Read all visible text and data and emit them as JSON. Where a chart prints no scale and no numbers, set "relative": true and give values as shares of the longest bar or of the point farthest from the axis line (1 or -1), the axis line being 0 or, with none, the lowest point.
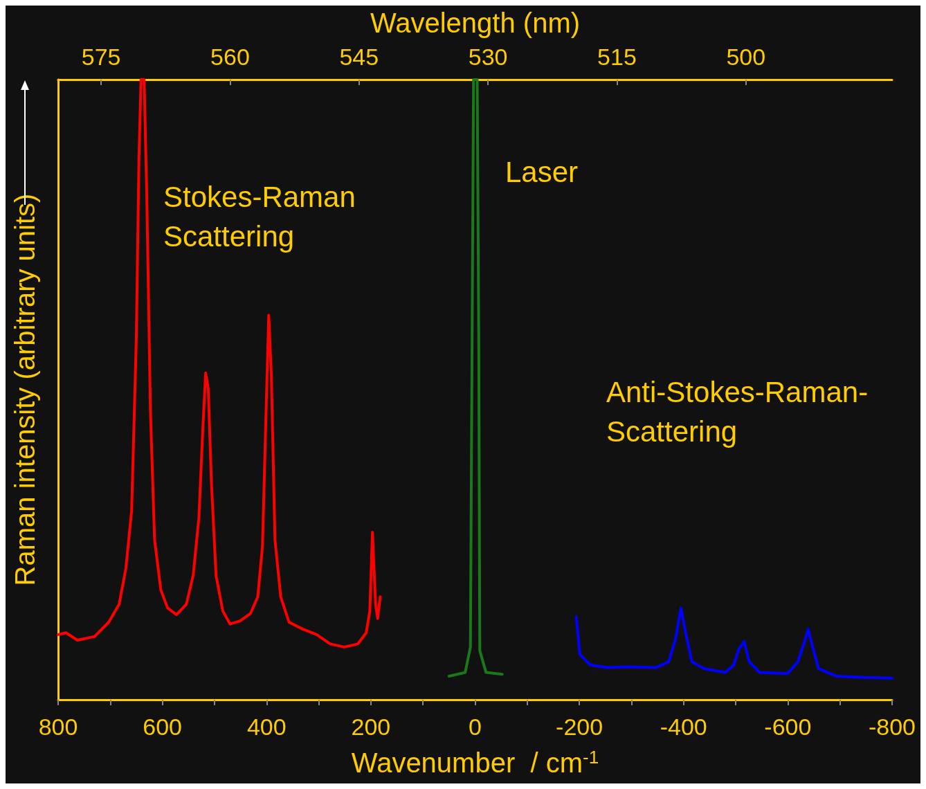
{
  "chart_data": {
    "type": "line",
    "relative": true,
    "xlabel": "Wavenumber  / cm$^{-1}$",
    "ylabel": "Raman intensity (arbitrary units)",
    "x2label": "Wavelength (nm)",
    "xlim": [
      800,
      -800
    ],
    "xticks": [
      800,
      {
        "value": 700,
        "label": null
      },
      600,
      {
        "value": 500,
        "label": null
      },
      400,
      {
        "value": 300,
        "label": null
      },
      200,
      {
        "value": 100,
        "label": null
      },
      0,
      {
        "value": -100,
        "label": null
      },
      -200,
      {
        "value": -300,
        "label": null
      },
      -400,
      {
        "value": -500,
        "label": null
      },
      -600,
      {
        "value": -700,
        "label": null
      },
      -800
    ],
    "x2lim": [
      580,
      483
    ],
    "x2ticks": [
      575,
      560,
      545,
      530,
      515,
      500
    ],
    "annotations": [
      "Stokes-Raman\nScattering",
      "Laser",
      "Anti-Stokes-Raman-\nScattering"
    ],
    "series": [
      {
        "color": "#ff0000",
        "x": [
          800,
          785,
          763,
          730,
          703,
          683,
          670,
          659,
          650,
          645,
          641,
          635,
          630,
          623,
          615,
          603,
          590,
          573,
          554,
          541,
          530,
          522,
          517,
          512,
          506,
          497,
          484,
          470,
          451,
          431,
          417,
          408,
          401,
          396,
          391,
          384,
          373,
          357,
          331,
          304,
          278,
          251,
          225,
          209,
          202,
          197,
          191,
          187,
          182
        ],
        "values": [
          0.105,
          0.108,
          0.096,
          0.102,
          0.125,
          0.154,
          0.212,
          0.305,
          0.583,
          0.872,
          1,
          1,
          0.815,
          0.467,
          0.258,
          0.177,
          0.148,
          0.137,
          0.154,
          0.2,
          0.293,
          0.444,
          0.527,
          0.502,
          0.351,
          0.2,
          0.143,
          0.122,
          0.127,
          0.139,
          0.166,
          0.247,
          0.467,
          0.62,
          0.525,
          0.258,
          0.166,
          0.125,
          0.114,
          0.105,
          0.09,
          0.085,
          0.09,
          0.108,
          0.143,
          0.27,
          0.154,
          0.131,
          0.166
        ]
      },
      {
        "color": "#1a7a1a",
        "x": [
          50,
          19,
          9,
          5,
          3,
          -4,
          -7,
          -9,
          -21,
          -52
        ],
        "values": [
          0.038,
          0.044,
          0.085,
          0.699,
          1,
          1,
          0.583,
          0.079,
          0.044,
          0.041
        ]
      },
      {
        "color": "#0000ff",
        "x": [
          -194,
          -201,
          -221,
          -254,
          -294,
          -347,
          -371,
          -384,
          -395,
          -404,
          -416,
          -440,
          -480,
          -496,
          -506,
          -516,
          -526,
          -546,
          -599,
          -619,
          -633,
          -639,
          -646,
          -659,
          -693,
          -746,
          -800
        ],
        "values": [
          0.134,
          0.073,
          0.056,
          0.052,
          0.053,
          0.052,
          0.061,
          0.096,
          0.148,
          0.108,
          0.061,
          0.05,
          0.044,
          0.056,
          0.082,
          0.094,
          0.061,
          0.044,
          0.042,
          0.061,
          0.096,
          0.114,
          0.09,
          0.05,
          0.038,
          0.036,
          0.035
        ]
      }
    ]
  }
}
